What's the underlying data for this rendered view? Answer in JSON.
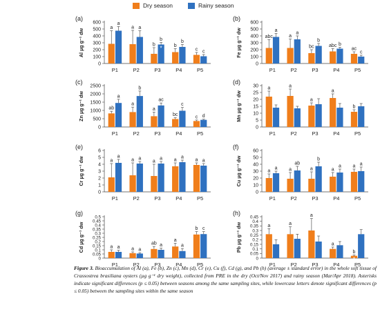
{
  "legend": [
    {
      "name": "Dry season",
      "color": "#F07E1B"
    },
    {
      "name": "Rainy season",
      "color": "#2F71C0"
    }
  ],
  "chart_data": [
    {
      "type": "bar",
      "panel_label": "(a)",
      "ylabel": "Al µg g⁻¹ dw",
      "categories": [
        "P1",
        "P2",
        "P3",
        "P4",
        "P5"
      ],
      "ylim": [
        0,
        600
      ],
      "yticks": [
        0,
        100,
        200,
        300,
        400,
        500,
        600
      ],
      "ytick_labels": [
        "0",
        "100",
        "200",
        "300",
        "400",
        "500",
        "600"
      ],
      "series": [
        {
          "name": "Dry season",
          "values": [
            285,
            280,
            140,
            165,
            125
          ],
          "errors": [
            190,
            200,
            90,
            50,
            35
          ],
          "labels": [
            "a",
            "a",
            "b",
            "b",
            "c"
          ]
        },
        {
          "name": "Rainy season",
          "values": [
            475,
            385,
            275,
            240,
            105
          ],
          "errors": [
            60,
            90,
            30,
            35,
            25
          ],
          "labels": [
            "a",
            "a",
            "b",
            "b",
            "c"
          ]
        }
      ],
      "asterisks": {
        "Dry season": [
          false,
          false,
          false,
          false,
          false
        ],
        "Rainy season": [
          false,
          false,
          true,
          false,
          false
        ]
      }
    },
    {
      "type": "bar",
      "panel_label": "(b)",
      "ylabel": "Fe µg g⁻¹ dw",
      "categories": [
        "P1",
        "P2",
        "P3",
        "P4",
        "P5"
      ],
      "ylim": [
        0,
        600
      ],
      "yticks": [
        0,
        100,
        200,
        300,
        400,
        500,
        600
      ],
      "ytick_labels": [
        "0",
        "100",
        "200",
        "300",
        "400",
        "500",
        "600"
      ],
      "series": [
        {
          "name": "Dry season",
          "values": [
            225,
            225,
            150,
            175,
            140
          ],
          "errors": [
            120,
            130,
            50,
            40,
            30
          ],
          "labels": [
            "abc",
            "a",
            "bc",
            "abc",
            "ac"
          ]
        },
        {
          "name": "Rainy season",
          "values": [
            385,
            350,
            255,
            215,
            100
          ],
          "errors": [
            50,
            50,
            35,
            20,
            20
          ],
          "labels": [
            "a",
            "a",
            "b",
            "b",
            "c"
          ]
        }
      ],
      "asterisks": {
        "Dry season": [
          false,
          false,
          false,
          false,
          false
        ],
        "Rainy season": [
          false,
          false,
          false,
          false,
          false
        ]
      }
    },
    {
      "type": "bar",
      "panel_label": "(c)",
      "ylabel": "Zn µg g⁻¹ dw",
      "categories": [
        "P1",
        "P2",
        "P3",
        "P4",
        "P5"
      ],
      "ylim": [
        0,
        2500
      ],
      "yticks": [
        0,
        500,
        1000,
        1500,
        2000,
        2500
      ],
      "ytick_labels": [
        "0",
        "500",
        "1000",
        "1500",
        "2000",
        "2500"
      ],
      "series": [
        {
          "name": "Dry season",
          "values": [
            820,
            900,
            650,
            480,
            360
          ],
          "errors": [
            130,
            300,
            250,
            80,
            60
          ],
          "labels": [
            "ab",
            "a",
            "a",
            "bc",
            "c"
          ]
        },
        {
          "name": "Rainy season",
          "values": [
            1450,
            1870,
            1300,
            980,
            430
          ],
          "errors": [
            220,
            300,
            150,
            200,
            40
          ],
          "labels": [
            "a",
            "b",
            "ac",
            "c",
            "d"
          ]
        }
      ],
      "asterisks": {
        "Dry season": [
          false,
          false,
          false,
          false,
          false
        ],
        "Rainy season": [
          false,
          false,
          false,
          false,
          false
        ]
      }
    },
    {
      "type": "bar",
      "panel_label": "(d)",
      "ylabel": "Mn µg g⁻¹ dw",
      "categories": [
        "P1",
        "P2",
        "P3",
        "P4",
        "P5"
      ],
      "ylim": [
        0,
        30
      ],
      "yticks": [
        0,
        5,
        10,
        15,
        20,
        25,
        30
      ],
      "ytick_labels": [
        "0",
        "5",
        "10",
        "15",
        "20",
        "25",
        "30"
      ],
      "series": [
        {
          "name": "Dry season",
          "values": [
            22,
            22.5,
            15.5,
            21,
            11
          ],
          "errors": [
            4,
            5,
            2,
            3,
            1.5
          ],
          "labels": [
            "a",
            "a",
            "a",
            "a",
            "b"
          ]
        },
        {
          "name": "Rainy season",
          "values": [
            14,
            13.5,
            16.5,
            14,
            15
          ],
          "errors": [
            2,
            1.5,
            4,
            3,
            2
          ],
          "labels": [
            "",
            "",
            "",
            "",
            ""
          ]
        }
      ],
      "asterisks": {
        "Dry season": [
          false,
          false,
          false,
          false,
          false
        ],
        "Rainy season": [
          false,
          false,
          false,
          false,
          false
        ]
      }
    },
    {
      "type": "bar",
      "panel_label": "(e)",
      "ylabel": "Cr µg g⁻¹ dw",
      "categories": [
        "P1",
        "P2",
        "P3",
        "P4",
        "P5"
      ],
      "ylim": [
        0,
        6
      ],
      "yticks": [
        0,
        1,
        2,
        3,
        4,
        5,
        6
      ],
      "ytick_labels": [
        "0",
        "1",
        "2",
        "3",
        "4",
        "5",
        "6"
      ],
      "series": [
        {
          "name": "Dry season",
          "values": [
            2.1,
            2.4,
            2.3,
            3.7,
            3.9
          ],
          "errors": [
            2.0,
            1.8,
            1.7,
            0.5,
            0.3
          ],
          "labels": [
            "a",
            "a",
            "a",
            "a",
            "a"
          ]
        },
        {
          "name": "Rainy season",
          "values": [
            4.2,
            4.1,
            4.1,
            4.3,
            3.8
          ],
          "errors": [
            0.5,
            0.3,
            0.3,
            0.3,
            0.3
          ],
          "labels": [
            "a",
            "a",
            "a",
            "a",
            "a"
          ]
        }
      ],
      "asterisks": {
        "Dry season": [
          false,
          false,
          false,
          false,
          false
        ],
        "Rainy season": [
          false,
          false,
          false,
          false,
          false
        ]
      }
    },
    {
      "type": "bar",
      "panel_label": "(f)",
      "ylabel": "Cu µg g⁻¹ dw",
      "categories": [
        "P1",
        "P2",
        "P3",
        "P4",
        "P5"
      ],
      "ylim": [
        0,
        60
      ],
      "yticks": [
        0,
        10,
        20,
        30,
        40,
        50,
        60
      ],
      "ytick_labels": [
        "0",
        "10",
        "20",
        "30",
        "40",
        "50",
        "60"
      ],
      "series": [
        {
          "name": "Dry season",
          "values": [
            20,
            19,
            19,
            22,
            29
          ],
          "errors": [
            6,
            9,
            10,
            6,
            4
          ],
          "labels": [
            "a",
            "a",
            "a",
            "a",
            "a"
          ]
        },
        {
          "name": "Rainy season",
          "values": [
            27,
            31,
            37,
            28,
            30
          ],
          "errors": [
            3,
            6,
            6,
            5,
            6
          ],
          "labels": [
            "a",
            "ab",
            "b",
            "a",
            "a"
          ]
        }
      ],
      "asterisks": {
        "Dry season": [
          false,
          false,
          false,
          false,
          false
        ],
        "Rainy season": [
          false,
          false,
          false,
          false,
          false
        ]
      }
    },
    {
      "type": "bar",
      "panel_label": "(g)",
      "ylabel": "Cd µg g⁻¹ dw",
      "categories": [
        "P1",
        "P2",
        "P3",
        "P4",
        "P5"
      ],
      "ylim": [
        0,
        0.5
      ],
      "yticks": [
        0,
        0.05,
        0.1,
        0.15,
        0.2,
        0.25,
        0.3,
        0.35,
        0.4,
        0.45,
        0.5
      ],
      "ytick_labels": [
        "0",
        "0.05",
        "0.1",
        "0.15",
        "0.2",
        "0.25",
        "0.3",
        "0.35",
        "0.4",
        "0.45",
        "0.5"
      ],
      "series": [
        {
          "name": "Dry season",
          "values": [
            0.075,
            0.06,
            0.11,
            0.14,
            0.285
          ],
          "errors": [
            0.025,
            0.015,
            0.03,
            0.04,
            0.035
          ],
          "labels": [
            "a",
            "a",
            "ab",
            "a",
            "b"
          ]
        },
        {
          "name": "Rainy season",
          "values": [
            0.075,
            0.055,
            0.1,
            0.085,
            0.29
          ],
          "errors": [
            0.02,
            0.01,
            0.02,
            0.03,
            0.03
          ],
          "labels": [
            "a",
            "a",
            "a",
            "a",
            "c"
          ]
        }
      ],
      "asterisks": {
        "Dry season": [
          false,
          false,
          false,
          false,
          false
        ],
        "Rainy season": [
          false,
          false,
          false,
          false,
          false
        ]
      }
    },
    {
      "type": "bar",
      "panel_label": "(h)",
      "ylabel": "Pb µg g⁻¹ dw",
      "categories": [
        "P1",
        "P2",
        "P3",
        "P4",
        "P5"
      ],
      "ylim": [
        0,
        0.45
      ],
      "yticks": [
        0,
        0.05,
        0.1,
        0.15,
        0.2,
        0.25,
        0.3,
        0.35,
        0.4,
        0.45
      ],
      "ytick_labels": [
        "0",
        "0.05",
        "0.1",
        "0.15",
        "0.2",
        "0.25",
        "0.3",
        "0.35",
        "0.4",
        "0.45"
      ],
      "series": [
        {
          "name": "Dry season",
          "values": [
            0.26,
            0.26,
            0.3,
            0.1,
            0.025
          ],
          "errors": [
            0.06,
            0.08,
            0.13,
            0.02,
            0.01
          ],
          "labels": [
            "a",
            "a",
            "a",
            "a",
            "b"
          ]
        },
        {
          "name": "Rainy season",
          "values": [
            0.15,
            0.21,
            0.18,
            0.14,
            0.26
          ],
          "errors": [
            0.05,
            0.05,
            0.06,
            0.04,
            0.05
          ],
          "labels": [
            "",
            "",
            "",
            "",
            ""
          ]
        }
      ],
      "asterisks": {
        "Dry season": [
          false,
          false,
          false,
          false,
          true
        ],
        "Rainy season": [
          false,
          false,
          false,
          false,
          false
        ]
      }
    }
  ],
  "caption": {
    "label": "Figure 3.",
    "text": "Bioaccumulation of Al (a), Fe (b), Zn (c), Mn (d), Cr (e), Cu (f), Cd (g), and Pb (h) (average ± standard error) in the whole soft tissue of Crassostrea brasiliana oysters (µg g⁻¹ dry weight), collected from PRE in the dry (Oct/Nov 2017) and rainy season (Mar/Apr 2018). Asterisks indicate significant differences (p ≤ 0.05) between seasons among the same sampling sites, while lowercase letters denote significant differences (p ≤ 0.05) between the sampling sites within the same season"
  }
}
